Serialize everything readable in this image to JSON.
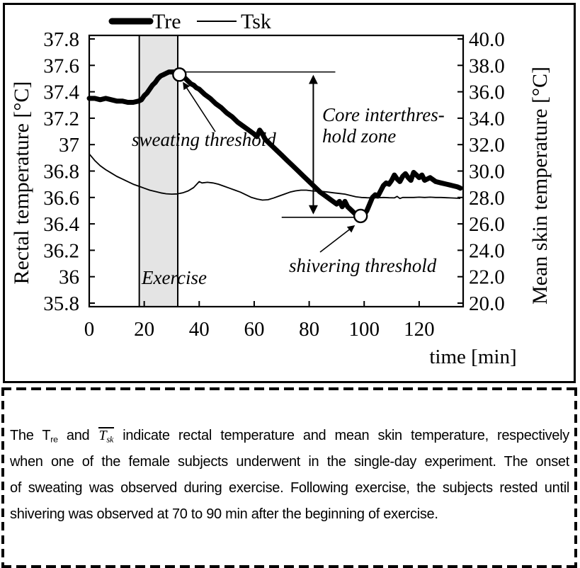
{
  "chart_data": {
    "type": "line",
    "x_label": "time [min]",
    "y_left_label": "Rectal temperature  [°C]",
    "y_right_label": "Mean skin temperature  [°C]",
    "x_range": [
      0,
      136
    ],
    "y_left_range": [
      35.8,
      37.8
    ],
    "y_right_range": [
      20.0,
      40.0
    ],
    "grid": false,
    "legend_position": "top",
    "x_ticks": [
      "0",
      "20",
      "40",
      "60",
      "80",
      "100",
      "120"
    ],
    "y_left_ticks": [
      "37.8",
      "37.6",
      "37.4",
      "37.2",
      "37",
      "36.8",
      "36.6",
      "36.4",
      "36.2",
      "36",
      "35.8"
    ],
    "y_right_ticks": [
      "40.0",
      "38.0",
      "36.0",
      "34.0",
      "32.0",
      "30.0",
      "28.0",
      "26.0",
      "24.0",
      "22.0",
      "20.0"
    ],
    "legend": [
      {
        "name": "Tre",
        "style": "thick"
      },
      {
        "name": "Tsk",
        "style": "thin"
      }
    ],
    "exercise_band": {
      "label": "Exercise",
      "t_start": 18.2,
      "t_end": 32.2
    },
    "annotations": {
      "sweating": "sweating threshold",
      "core_zone_line1": "Core interthres-",
      "core_zone_line2": "hold zone",
      "shivering": "shivering threshold"
    },
    "markers": {
      "sweating": {
        "t": 32.8,
        "value": 37.53
      },
      "shivering": {
        "t": 98.7,
        "value": 36.46
      }
    },
    "threshold_lines": {
      "sweating": {
        "value": 37.55,
        "t_start": 32.8,
        "t_end": 89.5
      },
      "shivering": {
        "value": 36.45,
        "t_start": 70.0,
        "t_end": 96.5
      },
      "gap_arrow": {
        "t": 81.5,
        "from_value": 37.55,
        "to_value": 36.45
      }
    },
    "series": [
      {
        "name": "Tre",
        "axis": "left",
        "points": [
          [
            0,
            37.35
          ],
          [
            2,
            37.35
          ],
          [
            4,
            37.34
          ],
          [
            6,
            37.35
          ],
          [
            8,
            37.34
          ],
          [
            10,
            37.33
          ],
          [
            12,
            37.33
          ],
          [
            14,
            37.32
          ],
          [
            16,
            37.32
          ],
          [
            18,
            37.33
          ],
          [
            19,
            37.34
          ],
          [
            20,
            37.37
          ],
          [
            21,
            37.39
          ],
          [
            22,
            37.42
          ],
          [
            23,
            37.45
          ],
          [
            24,
            37.47
          ],
          [
            25,
            37.5
          ],
          [
            26,
            37.52
          ],
          [
            27,
            37.53
          ],
          [
            28,
            37.54
          ],
          [
            29,
            37.55
          ],
          [
            30,
            37.55
          ],
          [
            31,
            37.55
          ],
          [
            32,
            37.54
          ],
          [
            33,
            37.53
          ],
          [
            34,
            37.52
          ],
          [
            35,
            37.5
          ],
          [
            36,
            37.48
          ],
          [
            37,
            37.46
          ],
          [
            38,
            37.45
          ],
          [
            39,
            37.43
          ],
          [
            40,
            37.42
          ],
          [
            42,
            37.38
          ],
          [
            44,
            37.35
          ],
          [
            46,
            37.31
          ],
          [
            48,
            37.28
          ],
          [
            50,
            37.24
          ],
          [
            52,
            37.21
          ],
          [
            54,
            37.17
          ],
          [
            56,
            37.14
          ],
          [
            58,
            37.11
          ],
          [
            60,
            37.08
          ],
          [
            61,
            37.06
          ],
          [
            62,
            37.11
          ],
          [
            63,
            37.08
          ],
          [
            64,
            37.04
          ],
          [
            66,
            37.0
          ],
          [
            68,
            36.96
          ],
          [
            70,
            36.92
          ],
          [
            72,
            36.88
          ],
          [
            74,
            36.84
          ],
          [
            76,
            36.8
          ],
          [
            78,
            36.76
          ],
          [
            80,
            36.72
          ],
          [
            82,
            36.68
          ],
          [
            84,
            36.64
          ],
          [
            86,
            36.61
          ],
          [
            88,
            36.58
          ],
          [
            90,
            36.55
          ],
          [
            91,
            36.57
          ],
          [
            92,
            36.53
          ],
          [
            93,
            36.57
          ],
          [
            94,
            36.53
          ],
          [
            95,
            36.51
          ],
          [
            96,
            36.49
          ],
          [
            97,
            36.47
          ],
          [
            98,
            36.46
          ],
          [
            99,
            36.46
          ],
          [
            100,
            36.47
          ],
          [
            101,
            36.5
          ],
          [
            102,
            36.55
          ],
          [
            103,
            36.6
          ],
          [
            104,
            36.62
          ],
          [
            105,
            36.61
          ],
          [
            106,
            36.65
          ],
          [
            107,
            36.69
          ],
          [
            108,
            36.71
          ],
          [
            109,
            36.7
          ],
          [
            110,
            36.73
          ],
          [
            111,
            36.77
          ],
          [
            112,
            36.74
          ],
          [
            113,
            36.72
          ],
          [
            114,
            36.76
          ],
          [
            115,
            36.78
          ],
          [
            116,
            36.75
          ],
          [
            117,
            36.73
          ],
          [
            118,
            36.79
          ],
          [
            119,
            36.77
          ],
          [
            120,
            36.75
          ],
          [
            121,
            36.77
          ],
          [
            122,
            36.73
          ],
          [
            124,
            36.75
          ],
          [
            126,
            36.72
          ],
          [
            128,
            36.71
          ],
          [
            130,
            36.7
          ],
          [
            132,
            36.69
          ],
          [
            134,
            36.68
          ],
          [
            135,
            36.67
          ]
        ]
      },
      {
        "name": "Tsk",
        "axis": "right",
        "points": [
          [
            0,
            31.3
          ],
          [
            2,
            30.8
          ],
          [
            4,
            30.4
          ],
          [
            6,
            30.1
          ],
          [
            8,
            29.85
          ],
          [
            10,
            29.6
          ],
          [
            12,
            29.4
          ],
          [
            14,
            29.2
          ],
          [
            16,
            29.0
          ],
          [
            18,
            28.85
          ],
          [
            20,
            28.7
          ],
          [
            22,
            28.55
          ],
          [
            24,
            28.45
          ],
          [
            26,
            28.35
          ],
          [
            28,
            28.28
          ],
          [
            30,
            28.25
          ],
          [
            32,
            28.27
          ],
          [
            34,
            28.35
          ],
          [
            36,
            28.5
          ],
          [
            38,
            28.75
          ],
          [
            40,
            29.2
          ],
          [
            41,
            29.1
          ],
          [
            43,
            29.15
          ],
          [
            45,
            29.1
          ],
          [
            47,
            29.0
          ],
          [
            49,
            28.85
          ],
          [
            51,
            28.7
          ],
          [
            53,
            28.55
          ],
          [
            55,
            28.4
          ],
          [
            57,
            28.2
          ],
          [
            59,
            28.0
          ],
          [
            61,
            27.88
          ],
          [
            63,
            27.8
          ],
          [
            65,
            27.83
          ],
          [
            67,
            27.95
          ],
          [
            69,
            28.1
          ],
          [
            71,
            28.25
          ],
          [
            73,
            28.4
          ],
          [
            75,
            28.5
          ],
          [
            77,
            28.55
          ],
          [
            79,
            28.55
          ],
          [
            81,
            28.5
          ],
          [
            83,
            28.47
          ],
          [
            85,
            28.45
          ],
          [
            87,
            28.4
          ],
          [
            89,
            28.35
          ],
          [
            91,
            28.3
          ],
          [
            93,
            28.25
          ],
          [
            95,
            28.15
          ],
          [
            97,
            28.05
          ],
          [
            99,
            28.0
          ],
          [
            101,
            27.98
          ],
          [
            103,
            27.97
          ],
          [
            105,
            27.98
          ],
          [
            107,
            28.0
          ],
          [
            109,
            27.98
          ],
          [
            111,
            27.97
          ],
          [
            112,
            28.08
          ],
          [
            113,
            27.92
          ],
          [
            114,
            28.0
          ],
          [
            116,
            28.0
          ],
          [
            118,
            28.0
          ],
          [
            120,
            28.02
          ],
          [
            122,
            28.0
          ],
          [
            124,
            28.02
          ],
          [
            126,
            28.0
          ],
          [
            128,
            28.0
          ],
          [
            130,
            27.98
          ],
          [
            132,
            27.96
          ],
          [
            134,
            27.94
          ],
          [
            135,
            27.93
          ]
        ]
      }
    ],
    "colors": {
      "line": "#000000",
      "band_fill": "#e4e4e4",
      "background": "#ffffff"
    }
  },
  "caption": {
    "line1": {
      "a": "The T",
      "sub1": "re",
      "b": " and ",
      "T": "T",
      "sub2": "sk",
      "c": " indicate rectal temperature and mean skin temperature, respectively"
    },
    "line2": "when one of the female subjects underwent in the single-day experiment. The onset",
    "line3": "of sweating was observed during exercise. Following exercise, the subjects rested until",
    "line4": "shivering was observed at 70 to 90 min after the beginning of exercise."
  }
}
